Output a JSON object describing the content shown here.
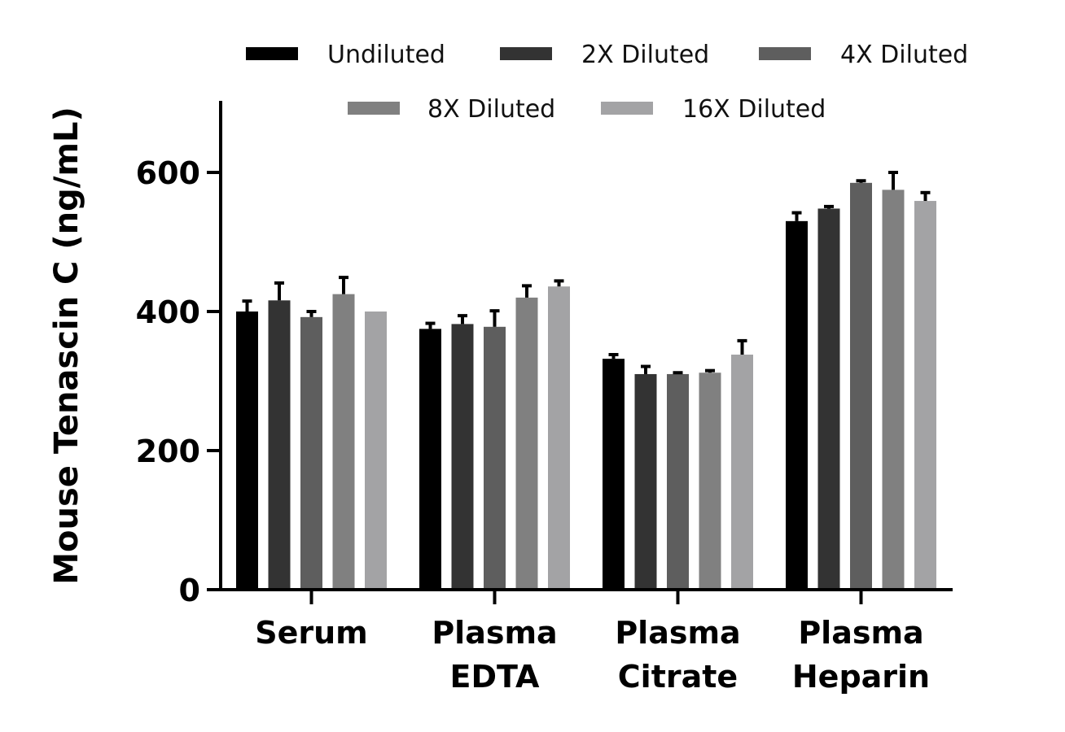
{
  "chart_data": {
    "type": "bar",
    "title": "",
    "xlabel": "",
    "ylabel": "Mouse Tenascin C (ng/mL)",
    "ylim": [
      0,
      700
    ],
    "yticks": [
      0,
      200,
      400,
      600
    ],
    "ytick_labels": [
      "0",
      "200",
      "400",
      "600"
    ],
    "categories": [
      [
        "Serum"
      ],
      [
        "Plasma",
        "EDTA"
      ],
      [
        "Plasma",
        "Citrate"
      ],
      [
        "Plasma",
        "Heparin"
      ]
    ],
    "legend_position": "top",
    "series": [
      {
        "name": "Undiluted",
        "color": "#000000",
        "values": [
          400,
          375,
          332,
          530
        ],
        "errors": [
          15,
          8,
          6,
          12
        ]
      },
      {
        "name": "2X Diluted",
        "color": "#333333",
        "values": [
          416,
          382,
          310,
          548
        ],
        "errors": [
          25,
          12,
          11,
          3
        ]
      },
      {
        "name": "4X Diluted",
        "color": "#5e5e5e",
        "values": [
          392,
          378,
          310,
          585
        ],
        "errors": [
          8,
          23,
          2,
          3
        ]
      },
      {
        "name": "8X Diluted",
        "color": "#808080",
        "values": [
          425,
          420,
          312,
          575
        ],
        "errors": [
          24,
          17,
          3,
          25
        ]
      },
      {
        "name": "16X Diluted",
        "color": "#a3a3a5",
        "values": [
          400,
          436,
          338,
          559
        ],
        "errors": [
          0,
          8,
          20,
          12
        ]
      }
    ]
  }
}
